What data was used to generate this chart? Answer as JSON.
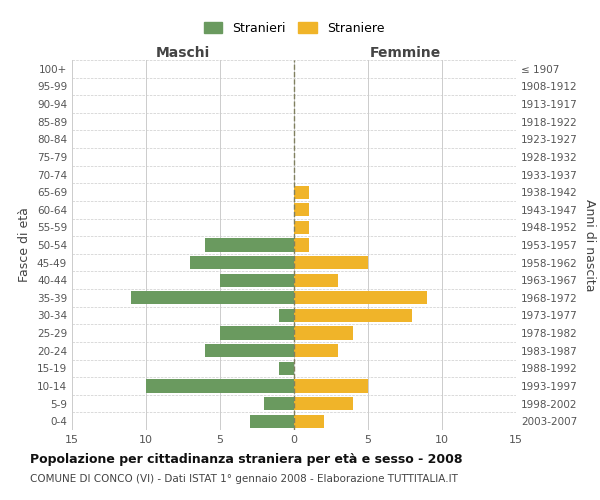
{
  "age_groups": [
    "0-4",
    "5-9",
    "10-14",
    "15-19",
    "20-24",
    "25-29",
    "30-34",
    "35-39",
    "40-44",
    "45-49",
    "50-54",
    "55-59",
    "60-64",
    "65-69",
    "70-74",
    "75-79",
    "80-84",
    "85-89",
    "90-94",
    "95-99",
    "100+"
  ],
  "birth_years": [
    "2003-2007",
    "1998-2002",
    "1993-1997",
    "1988-1992",
    "1983-1987",
    "1978-1982",
    "1973-1977",
    "1968-1972",
    "1963-1967",
    "1958-1962",
    "1953-1957",
    "1948-1952",
    "1943-1947",
    "1938-1942",
    "1933-1937",
    "1928-1932",
    "1923-1927",
    "1918-1922",
    "1913-1917",
    "1908-1912",
    "≤ 1907"
  ],
  "males": [
    3,
    2,
    10,
    1,
    6,
    5,
    1,
    11,
    5,
    7,
    6,
    0,
    0,
    0,
    0,
    0,
    0,
    0,
    0,
    0,
    0
  ],
  "females": [
    2,
    4,
    5,
    0,
    3,
    4,
    8,
    9,
    3,
    5,
    1,
    1,
    1,
    1,
    0,
    0,
    0,
    0,
    0,
    0,
    0
  ],
  "male_color": "#6a9a5f",
  "female_color": "#f0b429",
  "grid_color": "#cccccc",
  "center_line_color": "#808060",
  "title": "Popolazione per cittadinanza straniera per età e sesso - 2008",
  "subtitle": "COMUNE DI CONCO (VI) - Dati ISTAT 1° gennaio 2008 - Elaborazione TUTTITALIA.IT",
  "ylabel_left": "Fasce di età",
  "ylabel_right": "Anni di nascita",
  "xlabel_left": "Maschi",
  "xlabel_right": "Femmine",
  "legend_stranieri": "Stranieri",
  "legend_straniere": "Straniere",
  "xlim": 15,
  "background_color": "#ffffff"
}
